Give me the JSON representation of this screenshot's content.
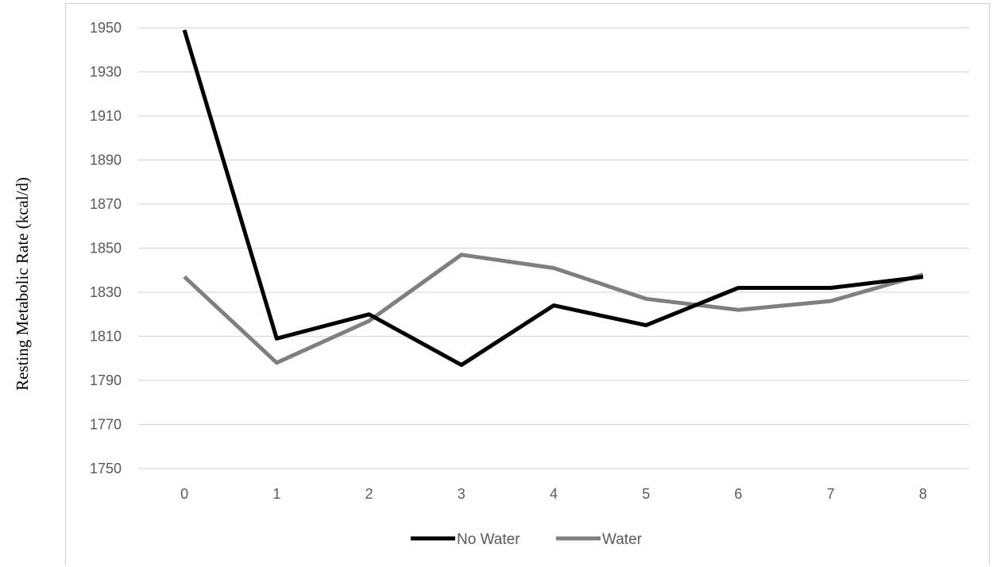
{
  "chart_data": {
    "type": "line",
    "title": "",
    "xlabel": "",
    "ylabel": "Resting Metabolic Rate (kcal/d)",
    "x": [
      0,
      1,
      2,
      3,
      4,
      5,
      6,
      7,
      8
    ],
    "x_tick_labels": [
      "0",
      "1",
      "2",
      "3",
      "4",
      "5",
      "6",
      "7",
      "8"
    ],
    "y_tick_labels": [
      "1750",
      "1770",
      "1790",
      "1810",
      "1830",
      "1850",
      "1870",
      "1890",
      "1910",
      "1930",
      "1950"
    ],
    "ylim": [
      1750,
      1950
    ],
    "grid": true,
    "legend_placement": "bottom",
    "series": [
      {
        "name": "No Water",
        "color": "#000000",
        "values": [
          1949,
          1809,
          1820,
          1797,
          1824,
          1815,
          1832,
          1832,
          1837
        ]
      },
      {
        "name": "Water",
        "color": "#7f7f7f",
        "values": [
          1837,
          1798,
          1817,
          1847,
          1841,
          1827,
          1822,
          1826,
          1838
        ]
      }
    ]
  }
}
